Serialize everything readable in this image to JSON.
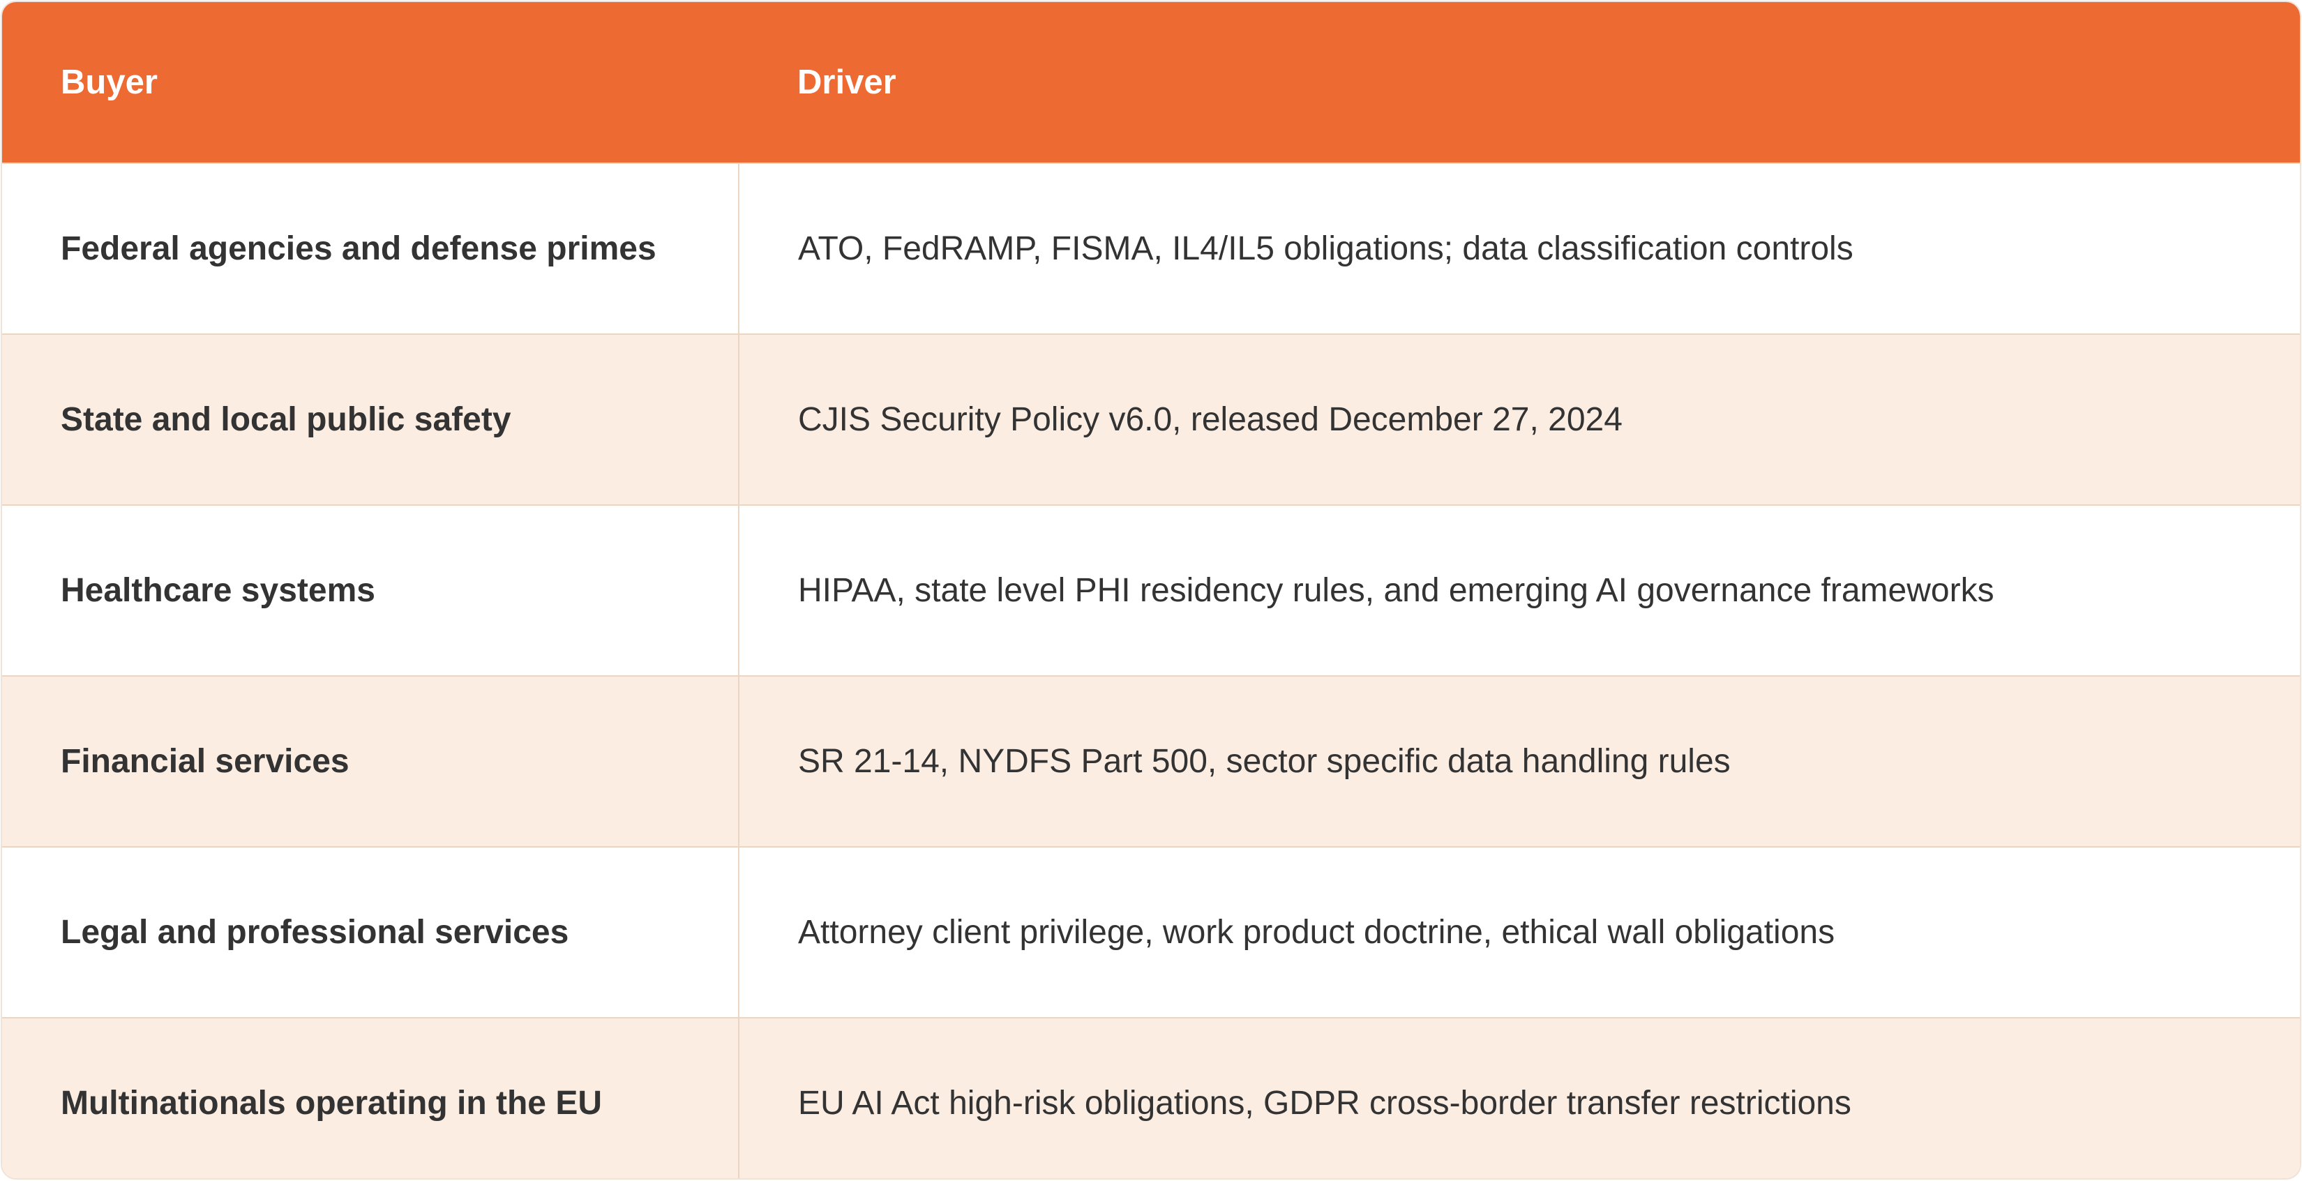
{
  "table": {
    "header": [
      "Buyer",
      "Driver"
    ],
    "rows": [
      [
        "Federal agencies and defense primes",
        "ATO, FedRAMP, FISMA, IL4/IL5 obligations; data classification controls"
      ],
      [
        "State and local public safety",
        "CJIS Security Policy v6.0, released December 27, 2024"
      ],
      [
        "Healthcare systems",
        "HIPAA, state level PHI residency rules, and emerging AI governance frameworks"
      ],
      [
        "Financial services",
        "SR 21-14, NYDFS Part 500, sector specific data handling rules"
      ],
      [
        "Legal and professional services",
        "Attorney client privilege, work product doctrine, ethical wall obligations"
      ],
      [
        "Multinationals operating in the EU",
        "EU AI Act high-risk obligations, GDPR cross-border transfer restrictions"
      ]
    ]
  }
}
